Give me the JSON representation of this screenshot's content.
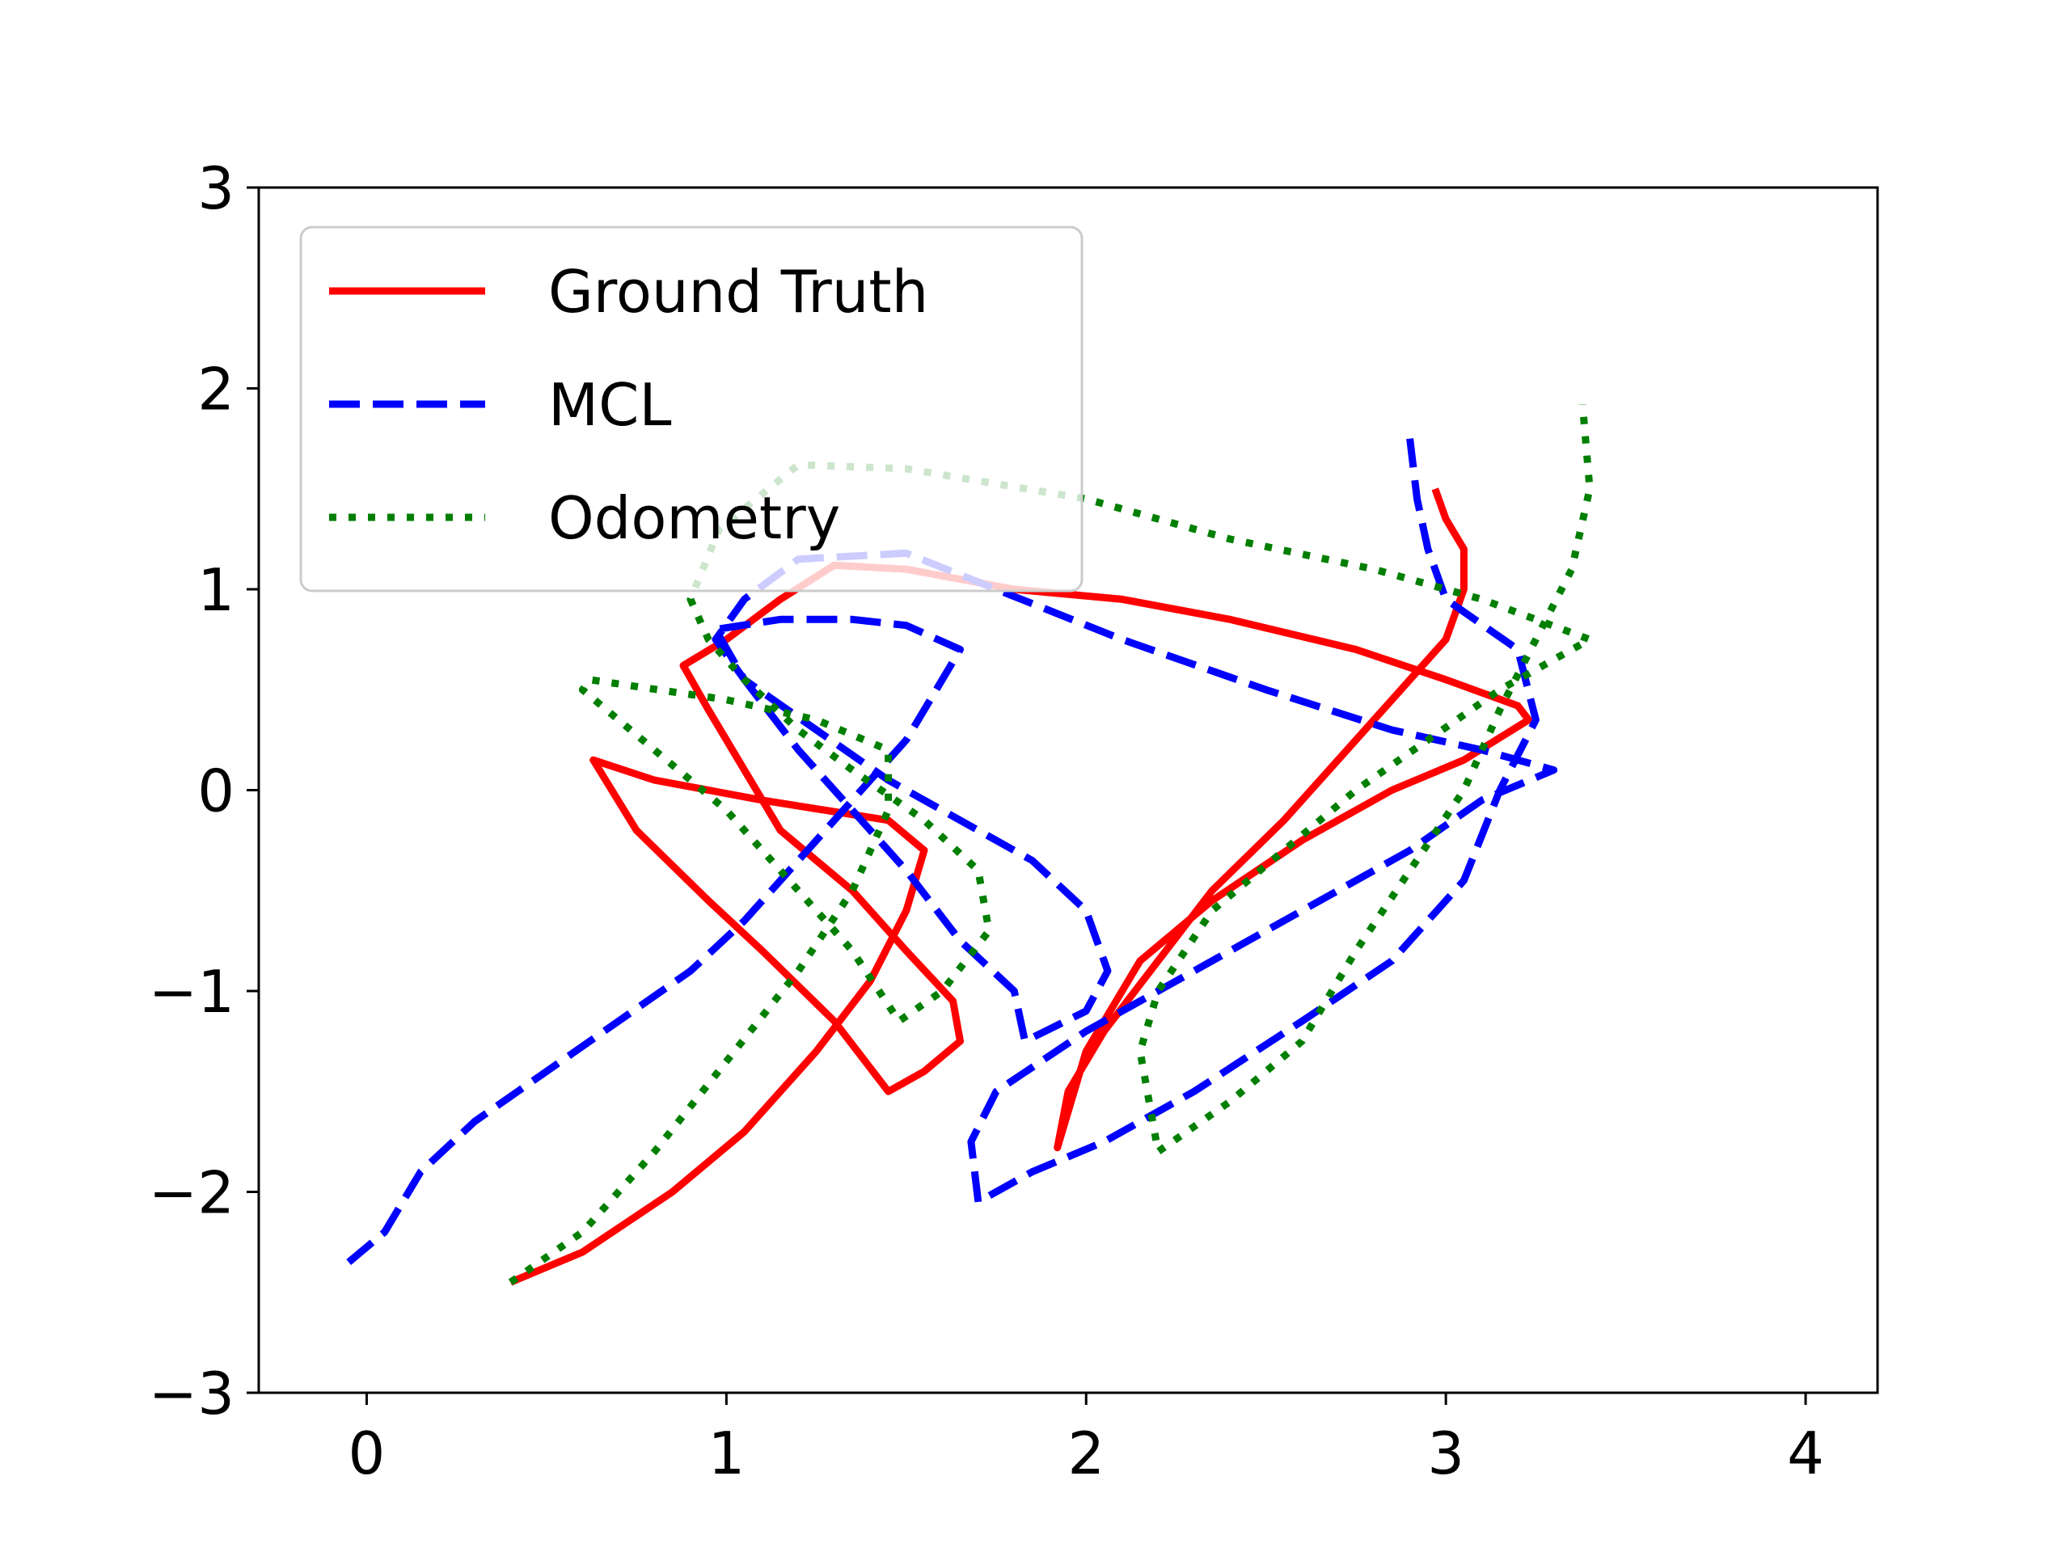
{
  "chart_data": {
    "type": "line",
    "title": "",
    "xlabel": "",
    "ylabel": "",
    "xlim": [
      -0.3,
      4.2
    ],
    "ylim": [
      -3,
      3
    ],
    "x_ticks": [
      0,
      1,
      2,
      3,
      4
    ],
    "x_tick_labels": [
      "0",
      "1",
      "2",
      "3",
      "4"
    ],
    "y_ticks": [
      -3,
      -2,
      -1,
      0,
      1,
      2,
      3
    ],
    "y_tick_labels": [
      "−3",
      "−2",
      "−1",
      "0",
      "1",
      "2",
      "3"
    ],
    "grid": false,
    "legend_position": "top-left",
    "series": [
      {
        "name": "Ground Truth",
        "color": "#ff0000",
        "style": "solid",
        "points": [
          [
            0.4,
            -2.45
          ],
          [
            0.6,
            -2.3
          ],
          [
            0.85,
            -2.0
          ],
          [
            1.05,
            -1.7
          ],
          [
            1.25,
            -1.3
          ],
          [
            1.4,
            -0.95
          ],
          [
            1.5,
            -0.6
          ],
          [
            1.55,
            -0.3
          ],
          [
            1.45,
            -0.15
          ],
          [
            1.1,
            -0.05
          ],
          [
            0.8,
            0.05
          ],
          [
            0.63,
            0.15
          ],
          [
            0.75,
            -0.2
          ],
          [
            0.95,
            -0.55
          ],
          [
            1.1,
            -0.8
          ],
          [
            1.3,
            -1.15
          ],
          [
            1.45,
            -1.5
          ],
          [
            1.55,
            -1.4
          ],
          [
            1.65,
            -1.25
          ],
          [
            1.63,
            -1.05
          ],
          [
            1.5,
            -0.8
          ],
          [
            1.35,
            -0.5
          ],
          [
            1.15,
            -0.2
          ],
          [
            0.95,
            0.4
          ],
          [
            0.88,
            0.62
          ],
          [
            1.0,
            0.75
          ],
          [
            1.15,
            0.95
          ],
          [
            1.3,
            1.12
          ],
          [
            1.5,
            1.1
          ],
          [
            1.8,
            1.0
          ],
          [
            2.1,
            0.95
          ],
          [
            2.4,
            0.85
          ],
          [
            2.75,
            0.7
          ],
          [
            3.0,
            0.55
          ],
          [
            3.2,
            0.42
          ],
          [
            3.23,
            0.35
          ],
          [
            3.05,
            0.15
          ],
          [
            2.85,
            0.0
          ],
          [
            2.6,
            -0.25
          ],
          [
            2.35,
            -0.55
          ],
          [
            2.15,
            -0.85
          ],
          [
            2.0,
            -1.3
          ],
          [
            1.92,
            -1.78
          ],
          [
            1.95,
            -1.5
          ],
          [
            2.05,
            -1.2
          ],
          [
            2.2,
            -0.85
          ],
          [
            2.35,
            -0.5
          ],
          [
            2.55,
            -0.15
          ],
          [
            2.7,
            0.15
          ],
          [
            2.85,
            0.45
          ],
          [
            3.0,
            0.75
          ],
          [
            3.05,
            1.0
          ],
          [
            3.05,
            1.2
          ],
          [
            3.0,
            1.35
          ],
          [
            2.97,
            1.5
          ]
        ]
      },
      {
        "name": "MCL",
        "color": "#0000ff",
        "style": "dashed",
        "points": [
          [
            -0.05,
            -2.35
          ],
          [
            0.05,
            -2.2
          ],
          [
            0.15,
            -1.9
          ],
          [
            0.3,
            -1.65
          ],
          [
            0.5,
            -1.4
          ],
          [
            0.7,
            -1.15
          ],
          [
            0.9,
            -0.9
          ],
          [
            1.05,
            -0.65
          ],
          [
            1.2,
            -0.35
          ],
          [
            1.35,
            -0.05
          ],
          [
            1.5,
            0.25
          ],
          [
            1.65,
            0.7
          ],
          [
            1.5,
            0.82
          ],
          [
            1.35,
            0.85
          ],
          [
            1.15,
            0.85
          ],
          [
            0.97,
            0.8
          ],
          [
            1.05,
            0.55
          ],
          [
            1.2,
            0.2
          ],
          [
            1.35,
            -0.1
          ],
          [
            1.5,
            -0.4
          ],
          [
            1.65,
            -0.75
          ],
          [
            1.8,
            -1.0
          ],
          [
            1.83,
            -1.25
          ],
          [
            2.0,
            -1.1
          ],
          [
            2.06,
            -0.9
          ],
          [
            2.0,
            -0.6
          ],
          [
            1.85,
            -0.35
          ],
          [
            1.65,
            -0.15
          ],
          [
            1.45,
            0.05
          ],
          [
            1.25,
            0.3
          ],
          [
            1.05,
            0.55
          ],
          [
            0.97,
            0.75
          ],
          [
            1.05,
            0.95
          ],
          [
            1.2,
            1.15
          ],
          [
            1.5,
            1.18
          ],
          [
            1.75,
            1.0
          ],
          [
            2.1,
            0.75
          ],
          [
            2.5,
            0.5
          ],
          [
            2.85,
            0.3
          ],
          [
            3.1,
            0.2
          ],
          [
            3.3,
            0.1
          ],
          [
            3.1,
            -0.05
          ],
          [
            2.9,
            -0.3
          ],
          [
            2.6,
            -0.6
          ],
          [
            2.3,
            -0.9
          ],
          [
            2.0,
            -1.2
          ],
          [
            1.75,
            -1.5
          ],
          [
            1.68,
            -1.75
          ],
          [
            1.7,
            -2.05
          ],
          [
            1.85,
            -1.9
          ],
          [
            2.05,
            -1.75
          ],
          [
            2.3,
            -1.5
          ],
          [
            2.6,
            -1.15
          ],
          [
            2.85,
            -0.85
          ],
          [
            3.05,
            -0.45
          ],
          [
            3.15,
            0.0
          ],
          [
            3.25,
            0.35
          ],
          [
            3.2,
            0.7
          ],
          [
            3.0,
            0.95
          ],
          [
            2.95,
            1.2
          ],
          [
            2.92,
            1.45
          ],
          [
            2.9,
            1.75
          ]
        ]
      },
      {
        "name": "Odometry",
        "color": "#007f00",
        "style": "dotted",
        "points": [
          [
            0.4,
            -2.45
          ],
          [
            0.6,
            -2.2
          ],
          [
            0.8,
            -1.8
          ],
          [
            1.0,
            -1.35
          ],
          [
            1.2,
            -0.9
          ],
          [
            1.35,
            -0.5
          ],
          [
            1.45,
            -0.1
          ],
          [
            1.45,
            0.2
          ],
          [
            1.25,
            0.35
          ],
          [
            1.0,
            0.45
          ],
          [
            0.62,
            0.55
          ],
          [
            0.6,
            0.5
          ],
          [
            0.8,
            0.2
          ],
          [
            1.0,
            -0.1
          ],
          [
            1.2,
            -0.5
          ],
          [
            1.35,
            -0.8
          ],
          [
            1.48,
            -1.15
          ],
          [
            1.6,
            -1.0
          ],
          [
            1.73,
            -0.7
          ],
          [
            1.7,
            -0.4
          ],
          [
            1.55,
            -0.15
          ],
          [
            1.35,
            0.1
          ],
          [
            1.2,
            0.3
          ],
          [
            1.05,
            0.55
          ],
          [
            0.95,
            0.75
          ],
          [
            0.9,
            0.95
          ],
          [
            0.98,
            1.3
          ],
          [
            1.2,
            1.62
          ],
          [
            1.5,
            1.6
          ],
          [
            2.0,
            1.45
          ],
          [
            2.4,
            1.25
          ],
          [
            2.8,
            1.1
          ],
          [
            3.1,
            0.95
          ],
          [
            3.4,
            0.75
          ],
          [
            3.15,
            0.5
          ],
          [
            2.95,
            0.25
          ],
          [
            2.75,
            0.0
          ],
          [
            2.55,
            -0.3
          ],
          [
            2.35,
            -0.6
          ],
          [
            2.2,
            -1.0
          ],
          [
            2.15,
            -1.3
          ],
          [
            2.2,
            -1.8
          ],
          [
            2.4,
            -1.55
          ],
          [
            2.6,
            -1.25
          ],
          [
            2.75,
            -0.8
          ],
          [
            2.9,
            -0.4
          ],
          [
            3.05,
            0.0
          ],
          [
            3.15,
            0.4
          ],
          [
            3.25,
            0.75
          ],
          [
            3.35,
            1.1
          ],
          [
            3.4,
            1.5
          ],
          [
            3.38,
            1.92
          ]
        ]
      }
    ]
  }
}
